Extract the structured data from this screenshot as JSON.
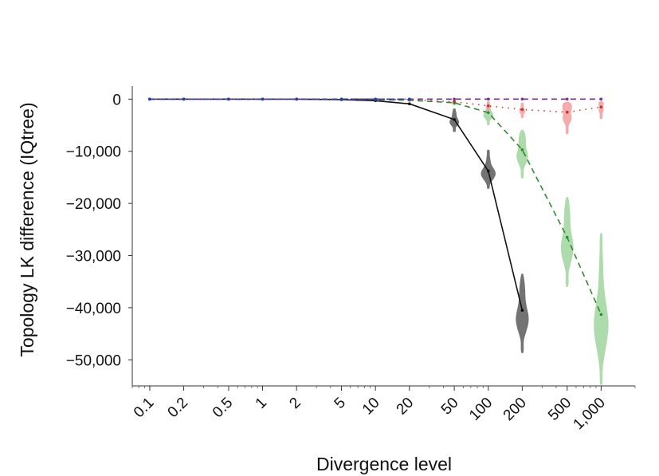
{
  "chart_data": {
    "type": "line",
    "xlabel": "Divergence level",
    "ylabel": "Topology LK difference (IQtree)",
    "x_scale": "log",
    "xlim": [
      0.07,
      2000
    ],
    "ylim": [
      -55000,
      2500
    ],
    "x_ticks": [
      {
        "value": 0.1,
        "label": "0.1"
      },
      {
        "value": 0.2,
        "label": "0.2"
      },
      {
        "value": 0.5,
        "label": "0.5"
      },
      {
        "value": 1,
        "label": "1"
      },
      {
        "value": 2,
        "label": "2"
      },
      {
        "value": 5,
        "label": "5"
      },
      {
        "value": 10,
        "label": "10"
      },
      {
        "value": 20,
        "label": "20"
      },
      {
        "value": 50,
        "label": "50"
      },
      {
        "value": 100,
        "label": "100"
      },
      {
        "value": 200,
        "label": "200"
      },
      {
        "value": 500,
        "label": "500"
      },
      {
        "value": 1000,
        "label": "1,000"
      }
    ],
    "y_ticks": [
      {
        "value": 0,
        "label": "0"
      },
      {
        "value": -10000,
        "label": "−10,000"
      },
      {
        "value": -20000,
        "label": "−20,000"
      },
      {
        "value": -30000,
        "label": "−30,000"
      },
      {
        "value": -40000,
        "label": "−40,000"
      },
      {
        "value": -50000,
        "label": "−50,000"
      }
    ],
    "x": [
      0.1,
      0.2,
      0.5,
      1,
      2,
      5,
      10,
      20,
      50,
      100,
      200,
      500,
      1000
    ],
    "series": [
      {
        "color": "#111111",
        "line_style": "solid",
        "values": [
          0,
          0,
          0,
          0,
          0,
          -100,
          -300,
          -900,
          -3900,
          -13800,
          -40500,
          null,
          null
        ],
        "violins": [
          {
            "x": 50,
            "min": -6300,
            "max": -1800,
            "center": -3900
          },
          {
            "x": 100,
            "min": -17200,
            "max": -9700,
            "center": -13800
          },
          {
            "x": 200,
            "min": -48700,
            "max": -33500,
            "center": -40500
          }
        ],
        "violin_color": "#6b6b6b"
      },
      {
        "color": "#2e8b2e",
        "line_style": "dashed",
        "values": [
          0,
          0,
          0,
          0,
          0,
          0,
          -100,
          -200,
          -700,
          -2600,
          -9700,
          -26500,
          -41300
        ],
        "violins": [
          {
            "x": 50,
            "min": -1200,
            "max": -200,
            "center": -700
          },
          {
            "x": 100,
            "min": -5000,
            "max": -400,
            "center": -2600
          },
          {
            "x": 200,
            "min": -15200,
            "max": -5900,
            "center": -9700
          },
          {
            "x": 500,
            "min": -36000,
            "max": -18800,
            "center": -26500
          },
          {
            "x": 1000,
            "min": -54800,
            "max": -25700,
            "center": -41300
          }
        ],
        "violin_color": "#a9d9a6"
      },
      {
        "color": "#c0392b",
        "line_style": "dotted",
        "values": [
          0,
          0,
          0,
          0,
          0,
          0,
          0,
          -100,
          -500,
          -1300,
          -2000,
          -2500,
          -1500
        ],
        "violins": [
          {
            "x": 50,
            "min": -900,
            "max": -100,
            "center": -500
          },
          {
            "x": 100,
            "min": -2300,
            "max": -500,
            "center": -1300
          },
          {
            "x": 200,
            "min": -3600,
            "max": -700,
            "center": -2000
          },
          {
            "x": 500,
            "min": -6700,
            "max": -500,
            "center": -2500
          },
          {
            "x": 1000,
            "min": -3800,
            "max": -400,
            "center": -1500
          }
        ],
        "violin_color": "#f4a7a7"
      },
      {
        "color": "#7b2d9c",
        "line_style": "dashed",
        "values": [
          0,
          0,
          0,
          0,
          0,
          0,
          0,
          0,
          0,
          0,
          0,
          0,
          0
        ],
        "violins": []
      },
      {
        "color": "#1f3fb5",
        "line_style": "dashdot",
        "values": [
          0,
          0,
          0,
          0,
          0,
          0,
          0,
          0,
          null,
          null,
          null,
          null,
          null
        ],
        "violins": []
      }
    ]
  }
}
